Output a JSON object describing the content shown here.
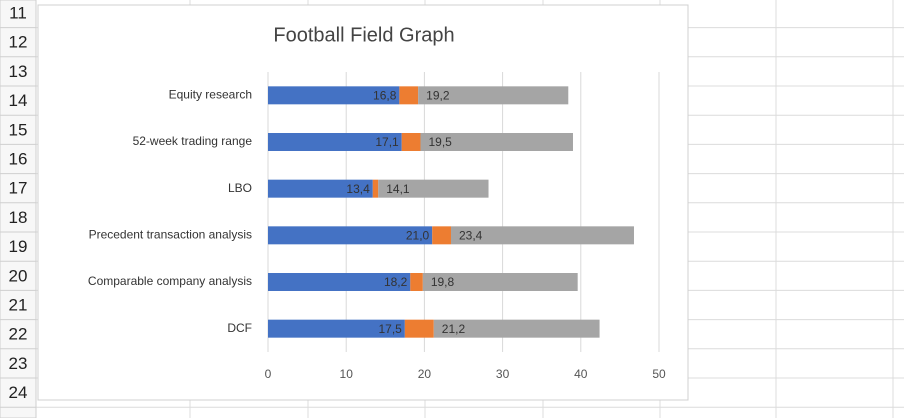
{
  "row_headers": [
    "11",
    "12",
    "13",
    "14",
    "15",
    "16",
    "17",
    "18",
    "19",
    "20",
    "21",
    "22",
    "23",
    "24"
  ],
  "chart_data": {
    "type": "stacked-barh",
    "title": "Football Field Graph",
    "categories": [
      "Equity research",
      "52-week trading range",
      "LBO",
      "Precedent transaction analysis",
      "Comparable company analysis",
      "DCF"
    ],
    "series": [
      {
        "color": "#4472c4",
        "values": [
          16.8,
          17.1,
          13.4,
          21.0,
          18.2,
          17.5
        ],
        "value_labels": [
          "16,8",
          "17,1",
          "13,4",
          "21,0",
          "18,2",
          "17,5"
        ]
      },
      {
        "color": "#ed7d31",
        "values": [
          2.4,
          2.4,
          0.7,
          2.4,
          1.6,
          3.7
        ]
      },
      {
        "color": "#a5a5a5",
        "values": [
          19.2,
          19.5,
          14.1,
          23.4,
          19.8,
          21.2
        ],
        "value_labels": [
          "19,2",
          "19,5",
          "14,1",
          "23,4",
          "19,8",
          "21,2"
        ]
      }
    ],
    "xlim": [
      0,
      50
    ],
    "xticks": [
      0,
      10,
      20,
      30,
      40,
      50
    ],
    "grid": true
  }
}
